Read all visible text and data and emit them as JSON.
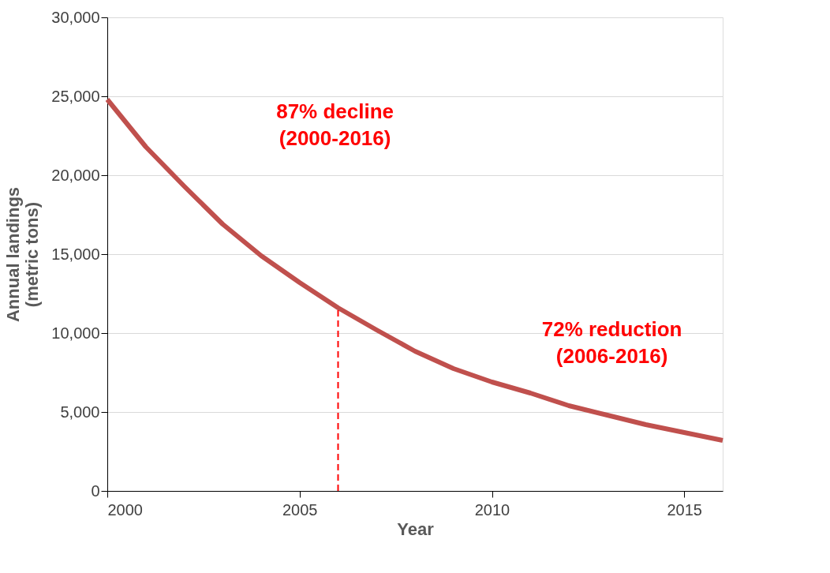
{
  "chart_data": {
    "type": "line",
    "xlabel": "Year",
    "ylabel": "Annual landings\n(metric tons)",
    "x": [
      2000,
      2001,
      2002,
      2003,
      2004,
      2005,
      2006,
      2007,
      2008,
      2009,
      2010,
      2011,
      2012,
      2013,
      2014,
      2015,
      2016
    ],
    "series": [
      {
        "color": "#c0504d",
        "values": [
          24800,
          21800,
          19300,
          16900,
          14900,
          13200,
          11600,
          10200,
          8850,
          7750,
          6900,
          6200,
          5400,
          4800,
          4200,
          3700,
          3200
        ]
      }
    ],
    "xlim": [
      2000,
      2016
    ],
    "xticks": [
      2000,
      2005,
      2010,
      2015
    ],
    "ylim": [
      0,
      30000
    ],
    "yticks": [
      0,
      {
        "value": 5000,
        "label": "5,000"
      },
      {
        "value": 10000,
        "label": "10,000"
      },
      {
        "value": 15000,
        "label": "15,000"
      },
      {
        "value": 20000,
        "label": "20,000"
      },
      {
        "value": 25000,
        "label": "25,000"
      },
      {
        "value": 30000,
        "label": "30,000"
      }
    ],
    "grid": "y",
    "marker": "none",
    "line_style": "solid",
    "ref_lines": [
      {
        "axis": "x",
        "value": 2006,
        "color": "#ff0000",
        "line_style": "dashed"
      }
    ],
    "annotations": [
      "87% decline\n(2000-2016)",
      "72% reduction\n(2006-2016)"
    ]
  }
}
